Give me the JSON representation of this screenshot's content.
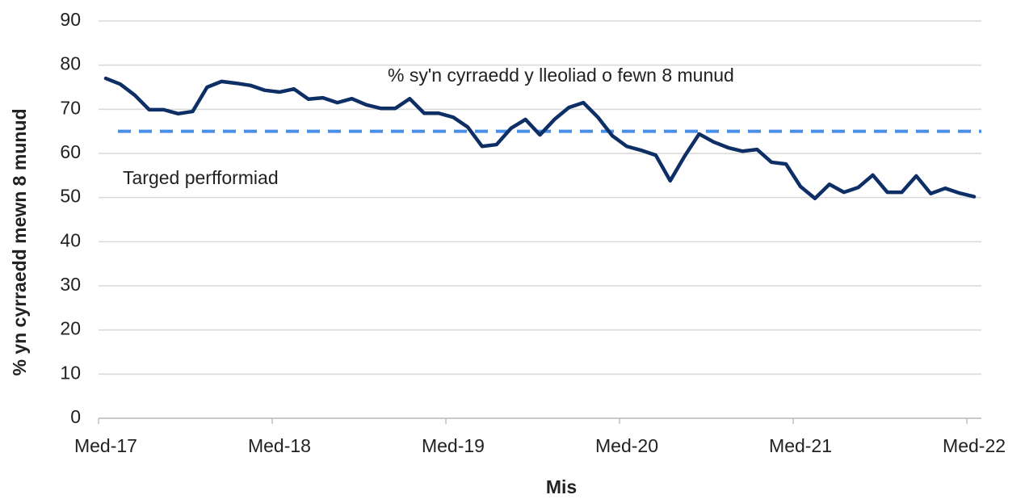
{
  "chart_data": {
    "type": "line",
    "xlabel": "Mis",
    "ylabel": "% yn cyrraedd mewn 8 munud",
    "categories": [
      "Med-17",
      null,
      null,
      null,
      null,
      null,
      null,
      null,
      null,
      null,
      null,
      null,
      "Med-18",
      null,
      null,
      null,
      null,
      null,
      null,
      null,
      null,
      null,
      null,
      null,
      "Med-19",
      null,
      null,
      null,
      null,
      null,
      null,
      null,
      null,
      null,
      null,
      null,
      "Med-20",
      null,
      null,
      null,
      null,
      null,
      null,
      null,
      null,
      null,
      null,
      null,
      "Med-21",
      null,
      null,
      null,
      null,
      null,
      null,
      null,
      null,
      null,
      null,
      null,
      "Med-22"
    ],
    "series": [
      {
        "name": "% sy'n cyrraedd y lleoliad o fewn 8 munud",
        "color": "#0d2f66",
        "values": [
          77.0,
          75.7,
          73.2,
          69.9,
          69.9,
          69.0,
          69.5,
          75.0,
          76.3,
          75.9,
          75.4,
          74.3,
          73.9,
          74.6,
          72.3,
          72.6,
          71.5,
          72.4,
          71.0,
          70.2,
          70.2,
          72.4,
          69.1,
          69.1,
          68.2,
          66.0,
          61.6,
          62.0,
          65.7,
          67.7,
          64.2,
          67.7,
          70.4,
          71.5,
          68.2,
          64.0,
          61.6,
          60.7,
          59.6,
          53.8,
          59.4,
          64.4,
          62.6,
          61.3,
          60.5,
          60.9,
          58.0,
          57.6,
          52.5,
          49.8,
          53.0,
          51.2,
          52.3,
          55.1,
          51.2,
          51.2,
          54.9,
          50.9,
          52.1,
          51.0,
          50.2
        ]
      }
    ],
    "target": {
      "name": "Targed perfformiad",
      "value": 65,
      "color": "#4a8fe7",
      "dashed": true
    },
    "ylim": [
      0,
      90
    ],
    "yticks": [
      0,
      10,
      20,
      30,
      40,
      50,
      60,
      70,
      80,
      90
    ],
    "grid": true
  }
}
